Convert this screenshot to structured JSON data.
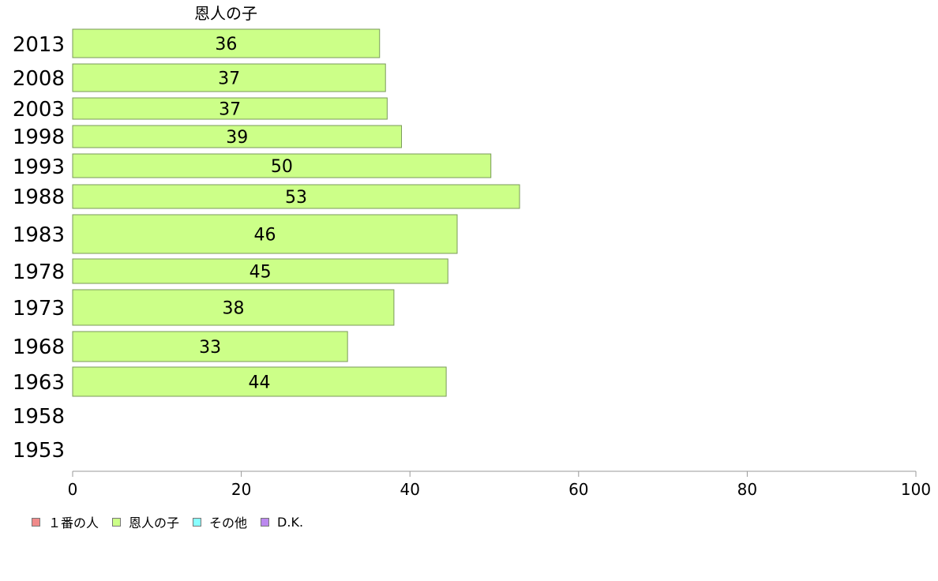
{
  "chart_data": {
    "type": "bar",
    "orientation": "horizontal",
    "stacked": true,
    "title": "恩人の子",
    "categories": [
      "2013",
      "2008",
      "2003",
      "1998",
      "1993",
      "1988",
      "1983",
      "1978",
      "1973",
      "1968",
      "1963",
      "1958",
      "1953"
    ],
    "series": [
      {
        "name": "１番の人",
        "color": "#f08a8a",
        "values": [
          null,
          null,
          null,
          null,
          null,
          null,
          null,
          null,
          null,
          null,
          null,
          null,
          null
        ]
      },
      {
        "name": "恩人の子",
        "color": "#ccff88",
        "values": [
          36.4,
          37.1,
          37.3,
          39.0,
          49.6,
          53.0,
          45.6,
          44.5,
          38.1,
          32.6,
          44.3,
          null,
          null
        ]
      },
      {
        "name": "その他",
        "color": "#88ffff",
        "values": [
          null,
          null,
          null,
          null,
          null,
          null,
          null,
          null,
          null,
          null,
          null,
          null,
          null
        ]
      },
      {
        "name": "D.K.",
        "color": "#bb88ee",
        "values": [
          null,
          null,
          null,
          null,
          null,
          null,
          null,
          null,
          null,
          null,
          null,
          null,
          null
        ]
      }
    ],
    "data_labels": [
      "36",
      "37",
      "37",
      "39",
      "50",
      "53",
      "46",
      "45",
      "38",
      "33",
      "44",
      "",
      ""
    ],
    "xlim": [
      0,
      100
    ],
    "xticks": [
      0,
      20,
      40,
      60,
      80,
      100
    ],
    "legend_position": "bottom-left",
    "grid": false
  },
  "legend": {
    "items": [
      {
        "label": "１番の人",
        "color": "#f08a8a"
      },
      {
        "label": "恩人の子",
        "color": "#ccff88"
      },
      {
        "label": "その他",
        "color": "#88ffff"
      },
      {
        "label": "D.K.",
        "color": "#bb88ee"
      }
    ]
  }
}
